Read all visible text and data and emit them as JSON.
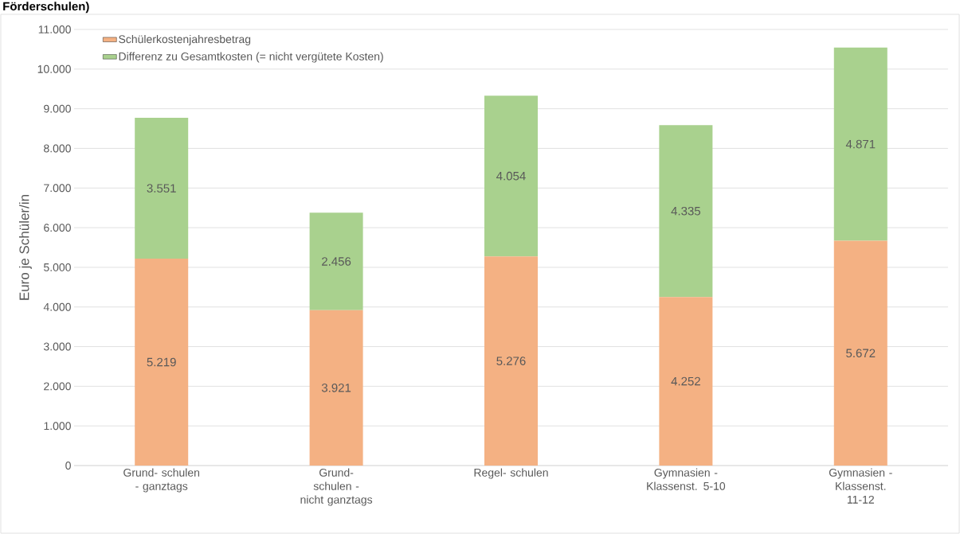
{
  "chart_data": {
    "type": "bar",
    "stacked": true,
    "title": "Förderschulen)",
    "ylabel": "Euro je Schüler/in",
    "categories": [
      "Grund- schulen - ganztags",
      "Grund- schulen - nicht ganztags",
      "Regel- schulen",
      "Gymnasien - Klassenst. 5-10",
      "Gymnasien - Klassenst. 11-12"
    ],
    "series": [
      {
        "name": "Schülerkostenjahresbetrag",
        "color": "#f4b183",
        "values": [
          5219,
          3921,
          5276,
          4252,
          5672
        ],
        "value_labels": [
          "5.219",
          "3.921",
          "5.276",
          "4.252",
          "5.672"
        ]
      },
      {
        "name": "Differenz zu Gesamtkosten (= nicht vergütete Kosten)",
        "color": "#a9d18e",
        "values": [
          3551,
          2456,
          4054,
          4335,
          4871
        ],
        "value_labels": [
          "3.551",
          "2.456",
          "4.054",
          "4.335",
          "4.871"
        ]
      }
    ],
    "ylim": [
      0,
      11000
    ],
    "yticks": [
      0,
      {
        "value": 1000,
        "label": "1.000"
      },
      {
        "value": 2000,
        "label": "2.000"
      },
      {
        "value": 3000,
        "label": "3.000"
      },
      {
        "value": 4000,
        "label": "4.000"
      },
      {
        "value": 5000,
        "label": "5.000"
      },
      {
        "value": 6000,
        "label": "6.000"
      },
      {
        "value": 7000,
        "label": "7.000"
      },
      {
        "value": 8000,
        "label": "8.000"
      },
      {
        "value": 9000,
        "label": "9.000"
      },
      {
        "value": 10000,
        "label": "10.000"
      },
      {
        "value": 11000,
        "label": "11.000"
      }
    ],
    "grid": "y",
    "legend": "top left"
  }
}
